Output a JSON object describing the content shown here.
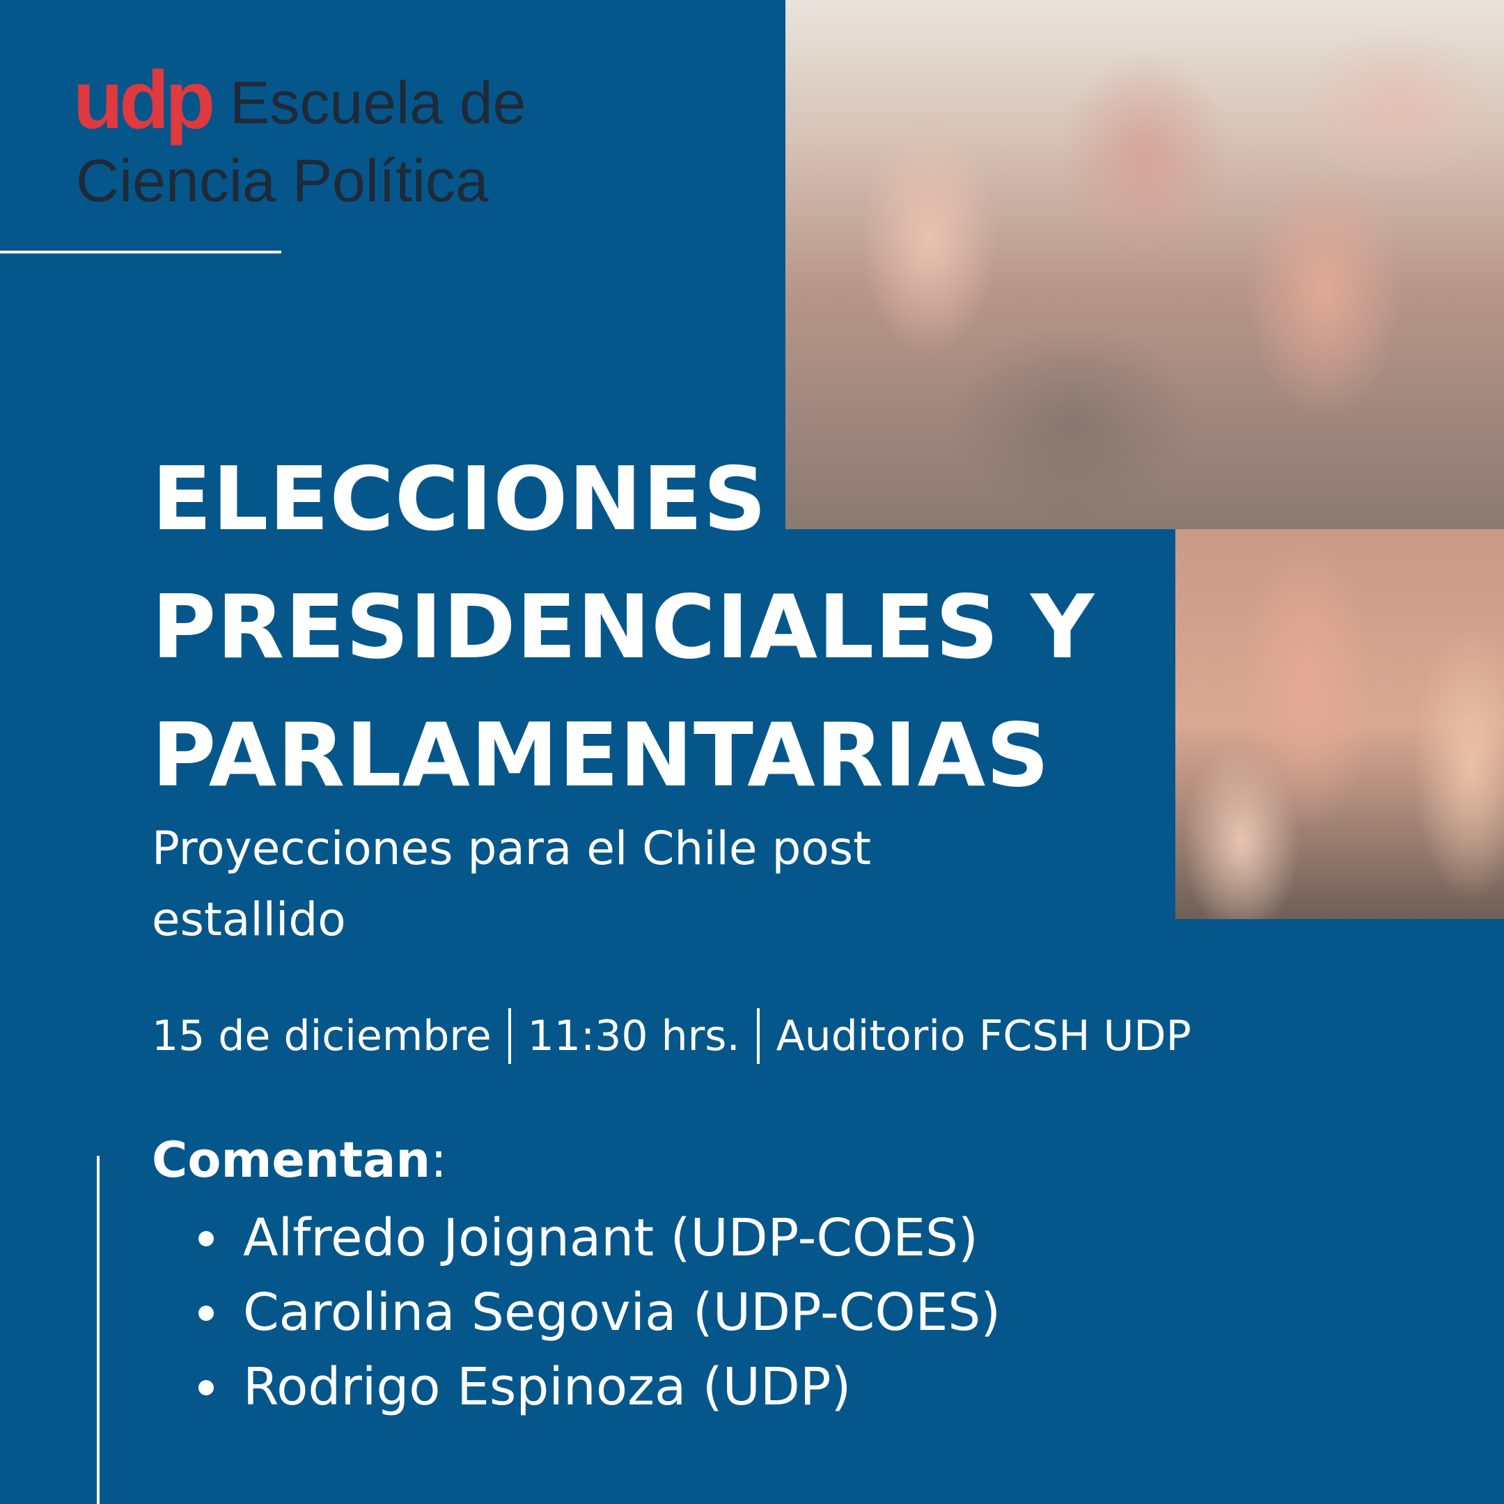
{
  "logo": {
    "brand": "udp",
    "school_line1": "Escuela de",
    "school_line2": "Ciencia Política",
    "brand_color": "#e0393e"
  },
  "title_lines": [
    "ELECCIONES",
    "PRESIDENCIALES Y",
    "PARLAMENTARIAS"
  ],
  "subtitle": "Proyecciones para el Chile post estallido",
  "event": {
    "date": "15 de diciembre",
    "time": "11:30 hrs.",
    "place": "Auditorio FCSH UDP"
  },
  "panel": {
    "heading": "Comentan",
    "heading_suffix": ":",
    "speakers": [
      "Alfredo Joignant (UDP-COES)",
      "Carolina Segovia (UDP-COES)",
      "Rodrigo Espinoza (UDP)"
    ]
  },
  "colors": {
    "background": "#05578b",
    "text": "#ffffff"
  },
  "image": {
    "subject": "raised-hands-photo"
  }
}
